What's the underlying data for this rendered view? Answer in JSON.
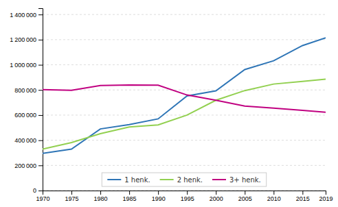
{
  "chart_data": {
    "type": "line",
    "x": [
      1970,
      1975,
      1980,
      1985,
      1990,
      1995,
      2000,
      2005,
      2010,
      2015,
      2019
    ],
    "series": [
      {
        "name": "1 henk.",
        "color": "#2E75B6",
        "values": [
          295000,
          330000,
          490000,
          525000,
          570000,
          752000,
          793000,
          962000,
          1032000,
          1153000,
          1215000
        ]
      },
      {
        "name": "2 henk.",
        "color": "#92D050",
        "values": [
          330000,
          382000,
          452000,
          505000,
          522000,
          600000,
          718000,
          795000,
          847000,
          868000,
          886000
        ]
      },
      {
        "name": "3+ henk.",
        "color": "#C00080",
        "values": [
          802000,
          797000,
          835000,
          840000,
          838000,
          760000,
          718000,
          672000,
          655000,
          638000,
          623000
        ]
      }
    ],
    "xlim": [
      1970,
      2019
    ],
    "xticks": [
      1970,
      1975,
      1980,
      1985,
      1990,
      1995,
      2000,
      2005,
      2010,
      2015,
      2019
    ],
    "ylim": [
      0,
      1450000
    ],
    "yticks": [
      0,
      {
        "value": 200000,
        "label": "200 000"
      },
      {
        "value": 400000,
        "label": "400 000"
      },
      {
        "value": 600000,
        "label": "600 000"
      },
      {
        "value": 800000,
        "label": "800 000"
      },
      {
        "value": 1000000,
        "label": "1 000 000"
      },
      {
        "value": 1200000,
        "label": "1 200 000"
      },
      {
        "value": 1400000,
        "label": "1 400 000"
      }
    ],
    "grid": true,
    "legend": "bottom"
  }
}
